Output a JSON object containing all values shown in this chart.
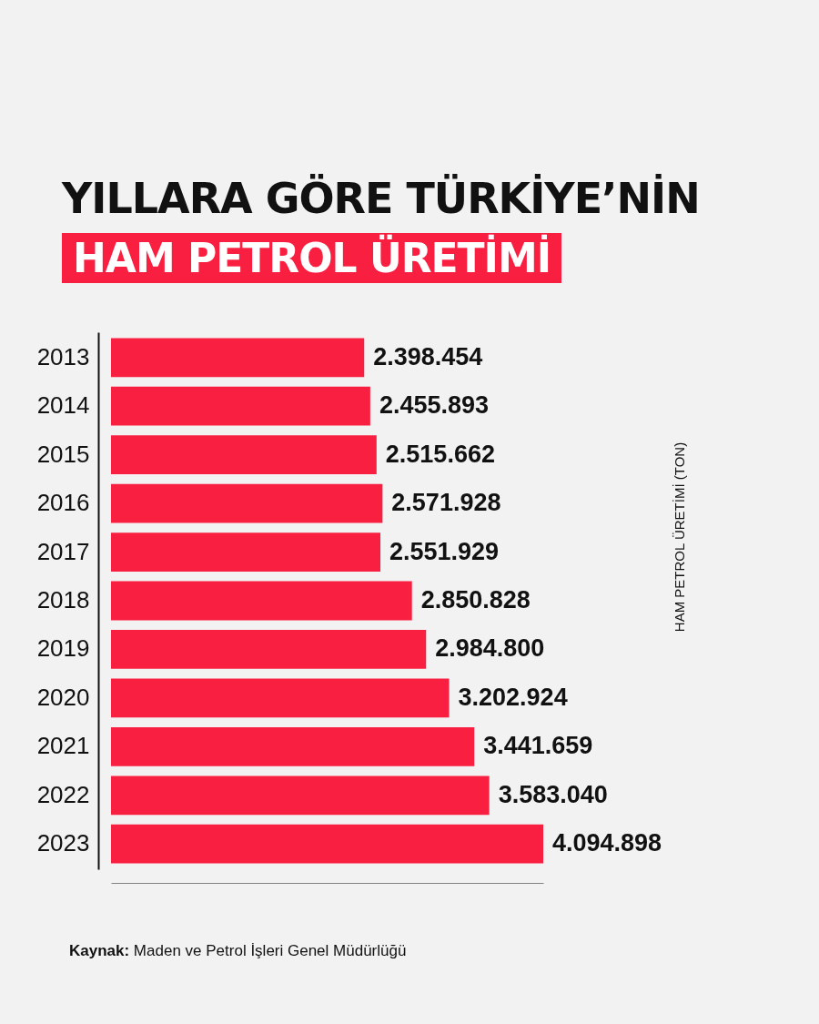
{
  "chart_data": {
    "type": "bar",
    "orientation": "horizontal",
    "title": "YILLARA GÖRE TÜRKİYE’NİN",
    "subtitle": "HAM PETROL ÜRETİMİ",
    "categories": [
      "2013",
      "2014",
      "2015",
      "2016",
      "2017",
      "2018",
      "2019",
      "2020",
      "2021",
      "2022",
      "2023"
    ],
    "values": [
      2398454,
      2455893,
      2515662,
      2571928,
      2551929,
      2850828,
      2984800,
      3202924,
      3441659,
      3583040,
      4094898
    ],
    "value_labels": [
      "2.398.454",
      "2.455.893",
      "2.515.662",
      "2.571.928",
      "2.551.929",
      "2.850.828",
      "2.984.800",
      "3.202.924",
      "3.441.659",
      "3.583.040",
      "4.094.898"
    ],
    "color": "#f91f40",
    "tick_labels": "y",
    "grid": false,
    "annotations": [
      "HAM PETROL ÜRETİMİ (TON)",
      "Kaynak: Maden ve Petrol İşleri Genel Müdürlüğü"
    ]
  }
}
